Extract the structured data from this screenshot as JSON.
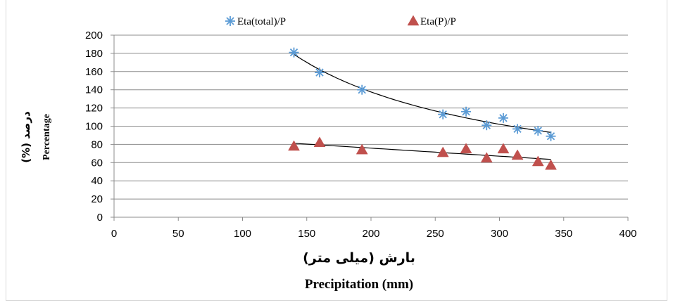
{
  "chart_data": {
    "type": "scatter",
    "xlabel_fa": "بارش (میلی متر)",
    "xlabel_en": "Precipitation (mm)",
    "ylabel_fa": "درصد (%)",
    "ylabel_en": "Percentage",
    "xlim": [
      0,
      400
    ],
    "ylim": [
      0,
      200
    ],
    "xticks": [
      0,
      50,
      100,
      150,
      200,
      250,
      300,
      350,
      400
    ],
    "yticks": [
      0,
      20,
      40,
      60,
      80,
      100,
      120,
      140,
      160,
      180,
      200
    ],
    "grid": "horizontal",
    "legend": "top",
    "series": [
      {
        "name": "Eta(total)/P",
        "marker": "asterisk",
        "color": "#5b9bd5",
        "x": [
          140,
          160,
          193,
          256,
          274,
          290,
          303,
          314,
          330,
          340
        ],
        "y": [
          181,
          159,
          140,
          113,
          116,
          101,
          109,
          97,
          95,
          89
        ],
        "trendline": "power"
      },
      {
        "name": "Eta(P)/P",
        "marker": "triangle",
        "color": "#c0504d",
        "x": [
          140,
          160,
          193,
          256,
          274,
          290,
          303,
          314,
          330,
          340
        ],
        "y": [
          78,
          82,
          74,
          71,
          75,
          65,
          75,
          68,
          61,
          57
        ],
        "trendline": "linear"
      }
    ]
  }
}
